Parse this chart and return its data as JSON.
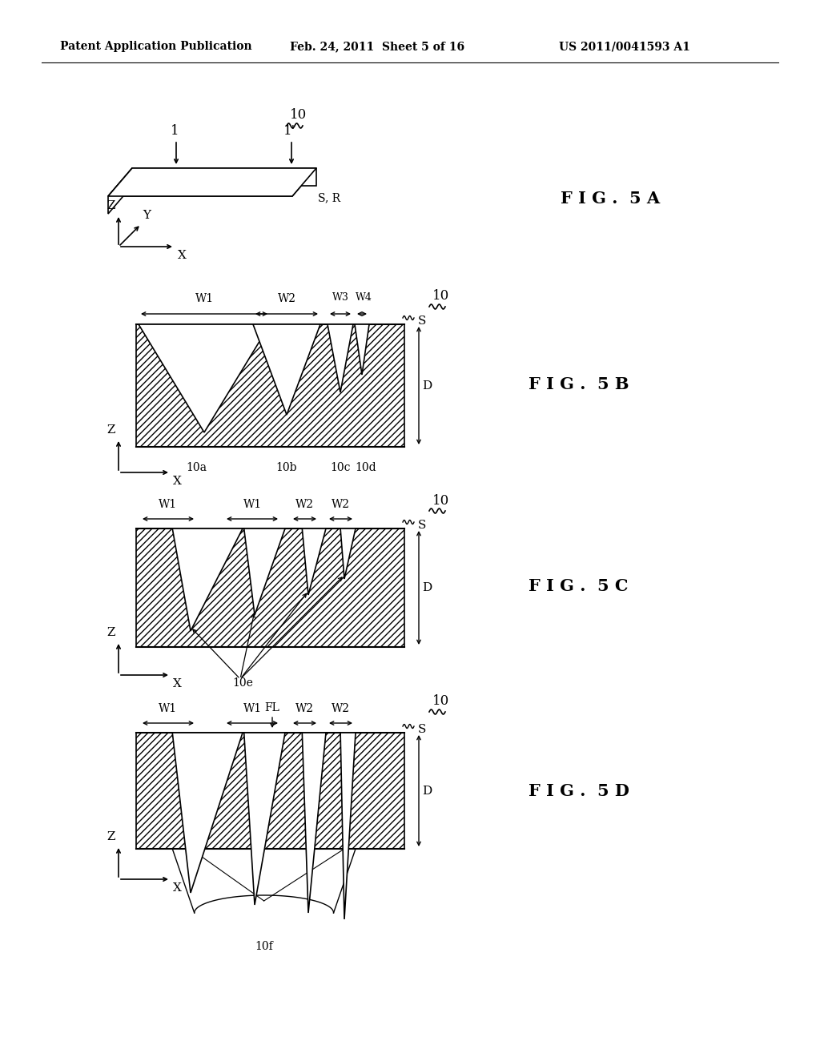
{
  "header_left": "Patent Application Publication",
  "header_mid": "Feb. 24, 2011  Sheet 5 of 16",
  "header_right": "US 2011/0041593 A1",
  "fig_label_5A": "F I G .  5 A",
  "fig_label_5B": "F I G .  5 B",
  "fig_label_5C": "F I G .  5 C",
  "fig_label_5D": "F I G .  5 D",
  "bg_color": "#ffffff"
}
